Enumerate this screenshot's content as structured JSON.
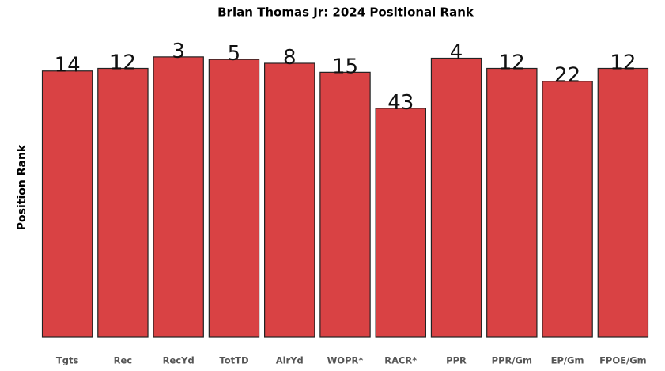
{
  "chart_data": {
    "type": "bar",
    "title": "Brian Thomas Jr: 2024 Positional Rank",
    "y_label": "Position Rank",
    "categories": [
      "Tgts",
      "Rec",
      "RecYd",
      "TotTD",
      "AirYd",
      "WOPR*",
      "RACR*",
      "PPR",
      "PPR/Gm",
      "EP/Gm",
      "FPOE/Gm"
    ],
    "values": [
      14,
      12,
      3,
      5,
      8,
      15,
      43,
      4,
      12,
      22,
      12
    ],
    "color": "#d94244",
    "ylim": [
      221,
      0
    ]
  }
}
